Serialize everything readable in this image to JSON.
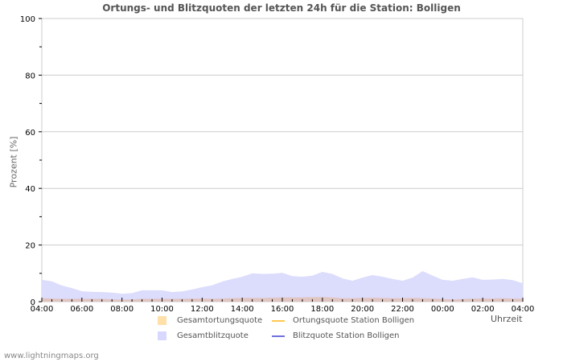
{
  "title": "Ortungs- und Blitzquoten der letzten 24h für die Station: Bolligen",
  "axes": {
    "ylabel": "Prozent   [%]",
    "xunit": "Uhrzeit",
    "yticks": [
      "0",
      "20",
      "40",
      "60",
      "80",
      "100"
    ],
    "xticks": [
      "04:00",
      "06:00",
      "08:00",
      "10:00",
      "12:00",
      "14:00",
      "16:00",
      "18:00",
      "20:00",
      "22:00",
      "00:00",
      "02:00",
      "04:00"
    ]
  },
  "legend": {
    "items": [
      {
        "label": "Gesamtortungsquote",
        "type": "area",
        "color": "#ffe0a8"
      },
      {
        "label": "Ortungsquote Station Bolligen",
        "type": "line",
        "color": "#ffc850"
      },
      {
        "label": "Gesamtblitzquote",
        "type": "area",
        "color": "#d8d8ff"
      },
      {
        "label": "Blitzquote Station Bolligen",
        "type": "line",
        "color": "#7070e0"
      }
    ]
  },
  "footer": "www.lightningmaps.org",
  "colors": {
    "blitz_area": "#dcdcfc",
    "ortung_area": "#e0c4c0",
    "grid": "#cccccc",
    "axis_text": "#000000"
  },
  "chart_data": {
    "type": "area",
    "title": "Ortungs- und Blitzquoten der letzten 24h für die Station: Bolligen",
    "xlabel": "Uhrzeit",
    "ylabel": "Prozent [%]",
    "ylim": [
      0,
      100
    ],
    "grid": true,
    "legend_position": "bottom",
    "x": [
      "04:00",
      "04:30",
      "05:00",
      "05:30",
      "06:00",
      "06:30",
      "07:00",
      "07:30",
      "08:00",
      "08:30",
      "09:00",
      "09:30",
      "10:00",
      "10:30",
      "11:00",
      "11:30",
      "12:00",
      "12:30",
      "13:00",
      "13:30",
      "14:00",
      "14:30",
      "15:00",
      "15:30",
      "16:00",
      "16:30",
      "17:00",
      "17:30",
      "18:00",
      "18:30",
      "19:00",
      "19:30",
      "20:00",
      "20:30",
      "21:00",
      "21:30",
      "22:00",
      "22:30",
      "23:00",
      "23:30",
      "00:00",
      "00:30",
      "01:00",
      "01:30",
      "02:00",
      "02:30",
      "03:00",
      "03:30",
      "04:00"
    ],
    "series": [
      {
        "name": "Gesamtblitzquote",
        "values": [
          7.7,
          7.2,
          5.7,
          4.8,
          3.7,
          3.5,
          3.4,
          3.2,
          2.8,
          3.0,
          4.0,
          4.0,
          4.0,
          3.4,
          3.6,
          4.3,
          5.1,
          5.8,
          7.1,
          8.0,
          8.8,
          10.0,
          9.8,
          9.9,
          10.2,
          9.0,
          8.8,
          9.2,
          10.5,
          9.8,
          8.2,
          7.4,
          8.5,
          9.4,
          8.8,
          8.0,
          7.4,
          8.5,
          10.8,
          9.2,
          7.7,
          7.4,
          8.0,
          8.6,
          7.7,
          7.8,
          8.0,
          7.6,
          6.5
        ]
      },
      {
        "name": "Gesamtortungsquote",
        "values": [
          1.2,
          1.1,
          1.0,
          1.0,
          1.0,
          1.0,
          1.0,
          0.8,
          0.7,
          0.8,
          1.0,
          1.0,
          1.0,
          1.0,
          1.0,
          1.1,
          1.1,
          1.0,
          1.1,
          1.2,
          1.3,
          1.3,
          1.3,
          1.4,
          1.5,
          1.5,
          1.5,
          1.6,
          1.6,
          1.5,
          1.2,
          1.2,
          1.3,
          1.4,
          1.3,
          1.2,
          1.2,
          1.3,
          1.2,
          1.1,
          0.9,
          0.8,
          0.9,
          1.1,
          1.1,
          1.1,
          1.2,
          1.1,
          1.0
        ]
      },
      {
        "name": "Ortungsquote Station Bolligen",
        "values": []
      },
      {
        "name": "Blitzquote Station Bolligen",
        "values": []
      }
    ]
  }
}
